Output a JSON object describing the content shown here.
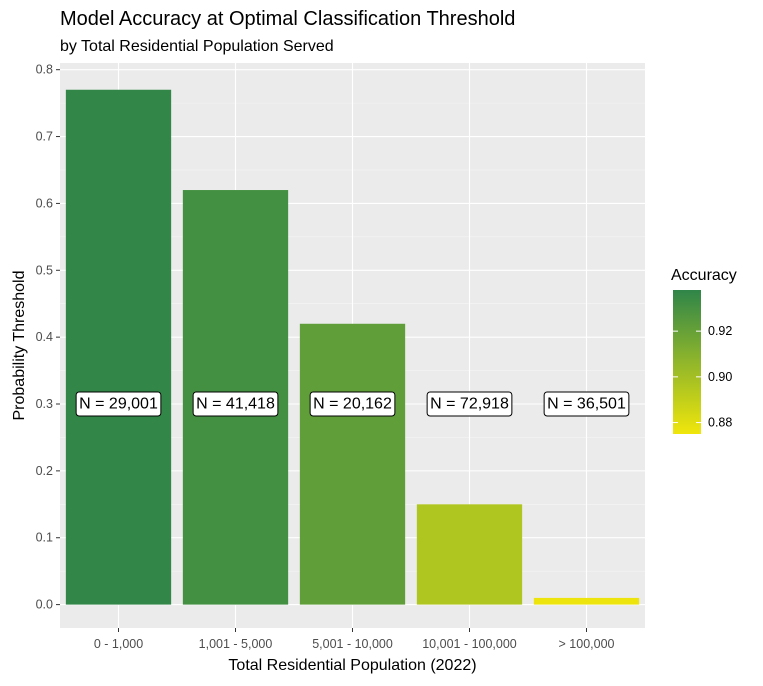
{
  "chart_data": {
    "type": "bar",
    "title": "Model Accuracy at Optimal Classification Threshold",
    "subtitle": "by Total Residential Population  Served",
    "xlabel": "Total Residential Population (2022)",
    "ylabel": "Probability Threshold",
    "categories": [
      "0 - 1,000",
      "1,001 - 5,000",
      "5,001 - 10,000",
      "10,001 - 100,000",
      "> 100,000"
    ],
    "values": [
      0.77,
      0.62,
      0.42,
      0.15,
      0.01
    ],
    "accuracy": [
      0.937,
      0.931,
      0.922,
      0.896,
      0.876
    ],
    "bar_labels": [
      "N = 29,001",
      "N = 41,418",
      "N = 20,162",
      "N = 72,918",
      "N = 36,501"
    ],
    "bar_label_y": 0.3,
    "ylim": [
      -0.035,
      0.81
    ],
    "yticks": [
      0.0,
      0.1,
      0.2,
      0.3,
      0.4,
      0.5,
      0.6,
      0.7,
      0.8
    ],
    "ytick_labels": [
      "0.0",
      "0.1",
      "0.2",
      "0.3",
      "0.4",
      "0.5",
      "0.6",
      "0.7",
      "0.8"
    ],
    "grid": true,
    "legend": {
      "title": "Accuracy",
      "position": "right",
      "range": [
        0.875,
        0.938
      ],
      "ticks": [
        0.88,
        0.9,
        0.92
      ],
      "tick_labels": [
        "0.88",
        "0.90",
        "0.92"
      ],
      "color_low": "#f0e60c",
      "color_high": "#2f8549"
    },
    "colors": {
      "panel": "#ebebeb",
      "grid_major": "#ffffff",
      "grid_minor": "#f5f5f5"
    }
  }
}
